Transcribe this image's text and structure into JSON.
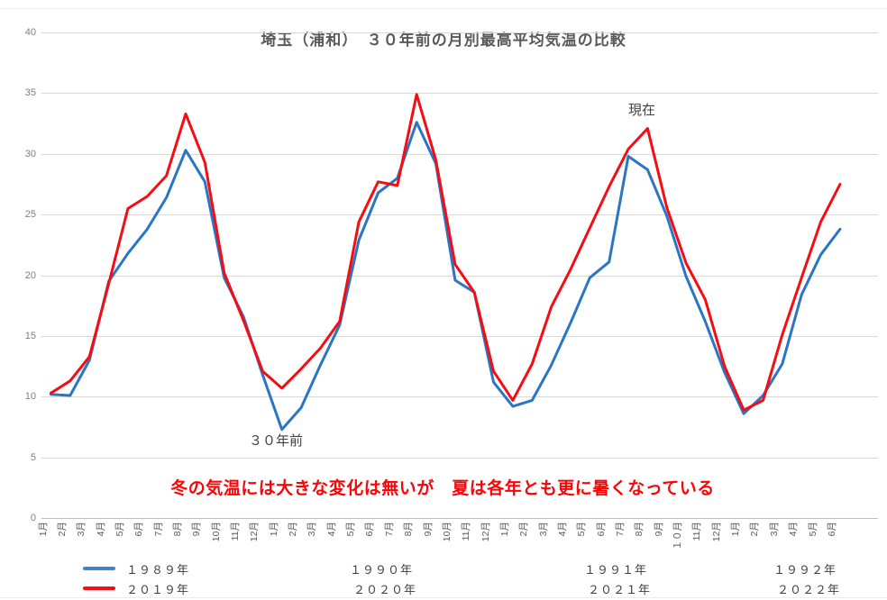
{
  "chart_data": {
    "type": "line",
    "title": "埼玉（浦和）　３０年前の月別最高平均気温の比較",
    "subtitle_message": "冬の気温には大きな変化は無いが　夏は各年とも更に暑くなっている",
    "ylabel": "",
    "xlabel": "",
    "ylim": [
      0,
      40
    ],
    "y_ticks": [
      0,
      5,
      10,
      15,
      20,
      25,
      30,
      35,
      40
    ],
    "grid": true,
    "x_labels": [
      "1月",
      "2月",
      "3月",
      "4月",
      "5月",
      "6月",
      "7月",
      "8月",
      "9月",
      "10月",
      "11月",
      "12月",
      "1月",
      "2月",
      "3月",
      "4月",
      "5月",
      "6月",
      "7月",
      "8月",
      "9月",
      "10月",
      "11月",
      "12月",
      "1月",
      "2月",
      "3月",
      "4月",
      "5月",
      "6月",
      "7月",
      "8月",
      "9月",
      "１０月",
      "11月",
      "12月",
      "1月",
      "2月",
      "3月",
      "4月",
      "5月",
      "6月"
    ],
    "series": [
      {
        "name": "３０年前 (1989-1992)",
        "legend": "１９８９年",
        "color": "#2b75c5",
        "values": [
          10.2,
          10.1,
          13.0,
          19.5,
          21.8,
          23.8,
          26.4,
          30.3,
          27.7,
          19.8,
          16.6,
          11.8,
          7.3,
          9.1,
          12.6,
          15.9,
          22.9,
          26.8,
          28.0,
          32.6,
          29.2,
          19.6,
          18.6,
          11.2,
          9.2,
          9.7,
          12.6,
          16.1,
          19.8,
          21.1,
          29.8,
          28.7,
          24.9,
          19.9,
          16.2,
          12.0,
          8.6,
          10.1,
          12.7,
          18.4,
          21.7,
          23.8
        ]
      },
      {
        "name": "現在 (2019-2022)",
        "legend": "２０１９年",
        "color": "#f60d13",
        "values": [
          10.3,
          11.3,
          13.3,
          19.3,
          25.5,
          26.5,
          28.2,
          33.3,
          29.3,
          20.2,
          16.3,
          12.1,
          10.7,
          12.3,
          14.0,
          16.2,
          24.4,
          27.7,
          27.4,
          34.9,
          29.5,
          20.9,
          18.6,
          12.1,
          9.7,
          12.7,
          17.4,
          20.5,
          23.9,
          27.3,
          30.4,
          32.1,
          25.6,
          21.0,
          18.0,
          12.5,
          8.9,
          9.7,
          15.1,
          19.8,
          24.4,
          27.5
        ]
      }
    ],
    "annotations": [
      {
        "text": "現在",
        "month_index": 32,
        "position": "above-red-peak"
      },
      {
        "text": "３０年前",
        "month_index": 13,
        "position": "below-blue-min"
      }
    ],
    "legend_position": "bottom",
    "year_columns": [
      {
        "top": "１９９０年",
        "bottom": "２０２０年"
      },
      {
        "top": "１９９１年",
        "bottom": "２０２１年"
      },
      {
        "top": "１９９２年",
        "bottom": "２０２２年"
      }
    ]
  }
}
